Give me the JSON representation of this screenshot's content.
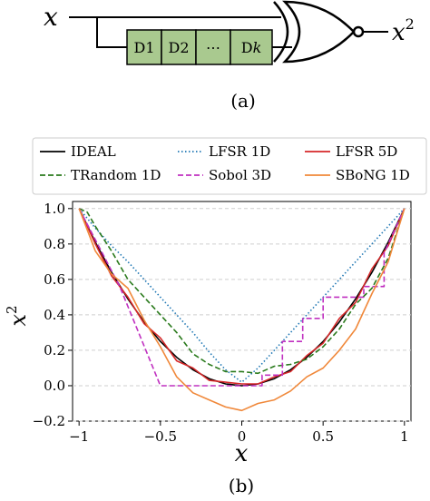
{
  "diagram": {
    "input_label": "x",
    "output_label": "x",
    "output_exponent": "2",
    "delays": [
      "D1",
      "D2",
      "⋯",
      "D"
    ],
    "last_delay_suffix": "k",
    "caption": "(a)",
    "colors": {
      "delay_fill": "#a9c98f",
      "stroke": "#000000"
    }
  },
  "chart_caption": "(b)",
  "chart_data": {
    "type": "line",
    "xlabel": "x",
    "ylabel": "x",
    "ylabel_exponent": "2",
    "xlim": [
      -1.04,
      1.04
    ],
    "ylim": [
      -0.2,
      1.04
    ],
    "xticks": [
      -1,
      -0.5,
      0,
      0.5,
      1
    ],
    "xtick_labels": [
      "−1",
      "−0.5",
      "0",
      "0.5",
      "1"
    ],
    "yticks": [
      -0.2,
      0.0,
      0.2,
      0.4,
      0.6,
      0.8,
      1.0
    ],
    "ytick_labels": [
      "−0.2",
      "0.0",
      "0.2",
      "0.4",
      "0.6",
      "0.8",
      "1.0"
    ],
    "grid": "horizontal dashed",
    "legend": "top, 3 columns",
    "series": [
      {
        "name": "IDEAL",
        "color": "#000000",
        "dash": "solid",
        "x": [
          -1,
          -0.9,
          -0.8,
          -0.7,
          -0.6,
          -0.5,
          -0.4,
          -0.3,
          -0.2,
          -0.1,
          0,
          0.1,
          0.2,
          0.3,
          0.4,
          0.5,
          0.6,
          0.7,
          0.8,
          0.9,
          1
        ],
        "y": [
          1,
          0.81,
          0.64,
          0.49,
          0.36,
          0.25,
          0.16,
          0.09,
          0.04,
          0.01,
          0,
          0.01,
          0.04,
          0.09,
          0.16,
          0.25,
          0.36,
          0.49,
          0.64,
          0.81,
          1
        ]
      },
      {
        "name": "LFSR 1D",
        "color": "#1f77b4",
        "dash": "dotted",
        "x": [
          -1,
          -0.9,
          -0.8,
          -0.7,
          -0.6,
          -0.5,
          -0.4,
          -0.3,
          -0.2,
          -0.1,
          0,
          0.1,
          0.2,
          0.3,
          0.4,
          0.5,
          0.6,
          0.7,
          0.8,
          0.9,
          1
        ],
        "y": [
          1,
          0.89,
          0.79,
          0.7,
          0.6,
          0.5,
          0.4,
          0.3,
          0.19,
          0.09,
          0.02,
          0.1,
          0.2,
          0.3,
          0.4,
          0.5,
          0.6,
          0.7,
          0.8,
          0.9,
          1
        ]
      },
      {
        "name": "LFSR 5D",
        "color": "#d62728",
        "dash": "solid",
        "x": [
          -1,
          -0.9,
          -0.8,
          -0.7,
          -0.6,
          -0.5,
          -0.4,
          -0.3,
          -0.2,
          -0.1,
          0,
          0.1,
          0.2,
          0.3,
          0.4,
          0.5,
          0.6,
          0.7,
          0.8,
          0.9,
          1
        ],
        "y": [
          1,
          0.8,
          0.62,
          0.5,
          0.35,
          0.27,
          0.14,
          0.1,
          0.03,
          0.02,
          0.01,
          0.01,
          0.05,
          0.08,
          0.17,
          0.24,
          0.38,
          0.47,
          0.66,
          0.79,
          1
        ]
      },
      {
        "name": "TRandom 1D",
        "color": "#2a7a1c",
        "dash": "dashed",
        "x": [
          -1,
          -0.95,
          -0.9,
          -0.8,
          -0.7,
          -0.6,
          -0.5,
          -0.4,
          -0.3,
          -0.2,
          -0.1,
          0,
          0.1,
          0.2,
          0.3,
          0.4,
          0.5,
          0.6,
          0.7,
          0.8,
          0.9,
          1
        ],
        "y": [
          1,
          0.98,
          0.9,
          0.76,
          0.6,
          0.5,
          0.4,
          0.3,
          0.18,
          0.12,
          0.08,
          0.08,
          0.07,
          0.11,
          0.12,
          0.15,
          0.22,
          0.32,
          0.46,
          0.55,
          0.72,
          1
        ]
      },
      {
        "name": "Sobol 3D",
        "color": "#c030c0",
        "dash": "dashed",
        "x": [
          -1,
          -0.75,
          -0.5,
          -0.25,
          0,
          0.125,
          0.125,
          0.25,
          0.25,
          0.375,
          0.375,
          0.5,
          0.5,
          0.75,
          0.75,
          0.875,
          0.875,
          1
        ],
        "y": [
          1,
          0.56,
          0.0,
          0.0,
          0.0,
          0.0,
          0.06,
          0.06,
          0.25,
          0.25,
          0.38,
          0.38,
          0.5,
          0.5,
          0.56,
          0.56,
          0.75,
          1
        ]
      },
      {
        "name": "SBoNG 1D",
        "color": "#f0883a",
        "dash": "solid",
        "x": [
          -1,
          -0.9,
          -0.8,
          -0.7,
          -0.6,
          -0.5,
          -0.4,
          -0.3,
          -0.2,
          -0.1,
          0,
          0.1,
          0.2,
          0.3,
          0.4,
          0.5,
          0.6,
          0.7,
          0.8,
          0.9,
          1
        ],
        "y": [
          1,
          0.76,
          0.63,
          0.55,
          0.37,
          0.22,
          0.05,
          -0.04,
          -0.08,
          -0.12,
          -0.14,
          -0.1,
          -0.08,
          -0.03,
          0.05,
          0.1,
          0.2,
          0.32,
          0.52,
          0.7,
          1
        ]
      }
    ]
  }
}
